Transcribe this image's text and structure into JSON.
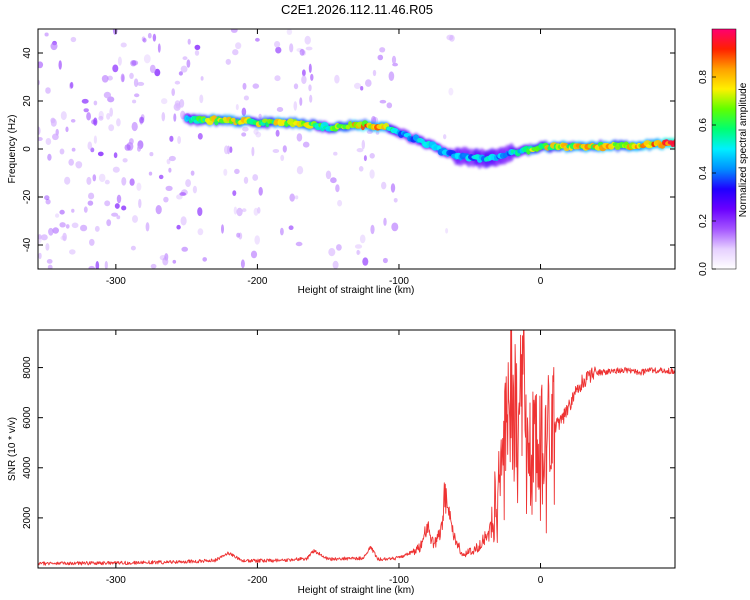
{
  "figure_title": "C2E1.2026.112.11.46.R05",
  "chart_data": [
    {
      "type": "heatmap",
      "title": "C2E1.2026.112.11.46.R05",
      "xlabel": "Height of straight line (km)",
      "ylabel": "Frequency (Hz)",
      "xlim": [
        -355,
        95
      ],
      "ylim": [
        -50,
        50
      ],
      "xticks": [
        -300,
        -200,
        -100,
        0
      ],
      "xtick_labels": [
        "-300",
        "-200",
        "-100",
        "0"
      ],
      "yticks": [
        -40,
        -20,
        0,
        20,
        40
      ],
      "ytick_labels": [
        "-40",
        "-20",
        "0",
        "20",
        "40"
      ],
      "colorbar": {
        "label": "Normalized spectral amplitude",
        "range": [
          0,
          1
        ],
        "ticks": [
          0.0,
          0.2,
          0.4,
          0.6,
          0.8
        ],
        "tick_labels": [
          "0.0",
          "0.2",
          "0.4",
          "0.6",
          "0.8"
        ],
        "colormap": [
          "#ffffff",
          "#e6d0ff",
          "#a455ff",
          "#6a00ff",
          "#1f00ff",
          "#0090ff",
          "#00f0ff",
          "#00ff70",
          "#60ff00",
          "#fff000",
          "#ffa000",
          "#ff2000",
          "#ff0070"
        ]
      },
      "ridge": {
        "x": [
          -250,
          -225,
          -200,
          -175,
          -150,
          -125,
          -110,
          -100,
          -80,
          -60,
          -40,
          -25,
          -15,
          -5,
          5,
          30,
          60,
          95
        ],
        "frequency": [
          12,
          12,
          11,
          11,
          9,
          10,
          9,
          7,
          2,
          -3,
          -4,
          -3,
          -1,
          0,
          1,
          1,
          1.5,
          2
        ],
        "amplitude": [
          0.55,
          0.8,
          0.7,
          0.78,
          0.6,
          0.85,
          0.8,
          0.45,
          0.5,
          0.45,
          0.5,
          0.45,
          0.55,
          0.7,
          0.75,
          0.8,
          0.8,
          0.9
        ]
      },
      "noise_segments": [
        {
          "x_from": -355,
          "x_to": -237,
          "amplitude": 0.25
        },
        {
          "x_from": -225,
          "x_to": -197,
          "amplitude": 0.22
        },
        {
          "x_from": -187,
          "x_to": -160,
          "amplitude": 0.2
        },
        {
          "x_from": -150,
          "x_to": -140,
          "amplitude": 0.15
        },
        {
          "x_from": -130,
          "x_to": -102,
          "amplitude": 0.2
        },
        {
          "x_from": -72,
          "x_to": -62,
          "amplitude": 0.08
        }
      ]
    },
    {
      "type": "line",
      "xlabel": "Height of straight line (km)",
      "ylabel": "SNR (10 * v/v)",
      "xlim": [
        -355,
        95
      ],
      "ylim": [
        0,
        9500
      ],
      "xticks": [
        -300,
        -200,
        -100,
        0
      ],
      "xtick_labels": [
        "-300",
        "-200",
        "-100",
        "0"
      ],
      "yticks": [
        2000,
        4000,
        6000,
        8000
      ],
      "ytick_labels": [
        "2000",
        "4000",
        "6000",
        "8000"
      ],
      "line_color": "#ee3333",
      "series": [
        {
          "name": "SNR",
          "x": [
            -355,
            -300,
            -250,
            -230,
            -220,
            -210,
            -180,
            -165,
            -160,
            -150,
            -125,
            -120,
            -115,
            -100,
            -85,
            -80,
            -75,
            -70,
            -68,
            -62,
            -55,
            -45,
            -35,
            -30,
            -25,
            -20,
            -15,
            -12,
            -10,
            -5,
            0,
            5,
            15,
            20,
            25,
            30,
            40,
            50,
            60,
            70,
            80,
            95
          ],
          "y": [
            180,
            200,
            250,
            300,
            600,
            280,
            300,
            380,
            700,
            350,
            400,
            850,
            350,
            400,
            800,
            1600,
            900,
            1500,
            2900,
            1400,
            500,
            800,
            1500,
            3000,
            5000,
            7000,
            4500,
            9500,
            4000,
            4700,
            5000,
            5400,
            5900,
            6400,
            7000,
            7500,
            7800,
            7850,
            7900,
            7800,
            7900,
            7850
          ]
        }
      ]
    }
  ]
}
